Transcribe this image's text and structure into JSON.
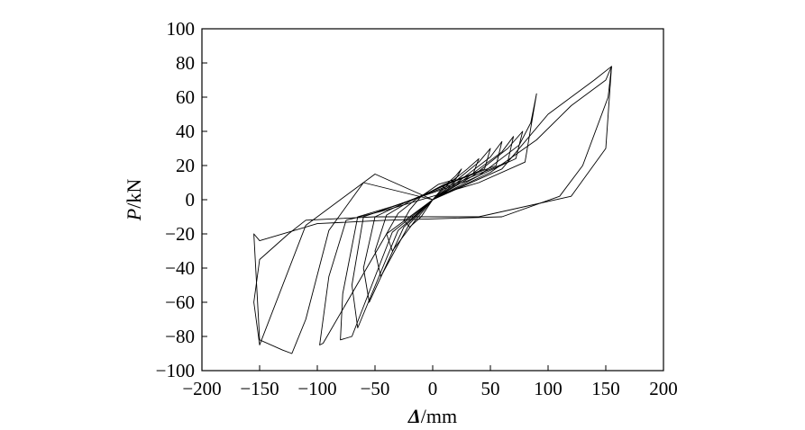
{
  "chart_data": {
    "type": "line",
    "title": "",
    "xlabel": {
      "symbol": "Δ",
      "unit": "/mm"
    },
    "ylabel": {
      "symbol": "P",
      "unit": "/kN"
    },
    "xlim": [
      -200,
      200
    ],
    "ylim": [
      -100,
      100
    ],
    "xticks": [
      -200,
      -150,
      -100,
      -50,
      0,
      50,
      100,
      150,
      200
    ],
    "yticks": [
      -100,
      -80,
      -60,
      -40,
      -20,
      0,
      20,
      40,
      60,
      80,
      100
    ],
    "xtick_labels": [
      "−200",
      "−150",
      "−100",
      "−50",
      "0",
      "50",
      "100",
      "150",
      "200"
    ],
    "ytick_labels": [
      "−100",
      "−80",
      "−60",
      "−40",
      "−20",
      "0",
      "20",
      "40",
      "60",
      "80",
      "100"
    ],
    "grid": false,
    "legend": "none",
    "line_color": "#000000",
    "series": [
      {
        "x": [
          0,
          10,
          20,
          25,
          20,
          5,
          -10,
          -20,
          -25,
          -20,
          -10,
          0
        ],
        "y": [
          0,
          8,
          14,
          18,
          12,
          9,
          2,
          -6,
          -12,
          -16,
          -10,
          0
        ]
      },
      {
        "x": [
          0,
          15,
          30,
          40,
          35,
          10,
          -15,
          -30,
          -40,
          -35,
          -15,
          0
        ],
        "y": [
          0,
          10,
          18,
          24,
          15,
          9,
          0,
          -8,
          -20,
          -30,
          -12,
          0
        ]
      },
      {
        "x": [
          0,
          20,
          40,
          50,
          45,
          15,
          -20,
          -40,
          -50,
          -45,
          -20,
          0
        ],
        "y": [
          0,
          11,
          22,
          30,
          18,
          10,
          -1,
          -9,
          -30,
          -45,
          -14,
          0
        ]
      },
      {
        "x": [
          0,
          25,
          50,
          60,
          55,
          20,
          -25,
          -50,
          -60,
          -55,
          -25,
          0
        ],
        "y": [
          0,
          12,
          25,
          34,
          20,
          11,
          -2,
          -10,
          -40,
          -60,
          -16,
          0
        ]
      },
      {
        "x": [
          0,
          30,
          60,
          70,
          65,
          25,
          -30,
          -60,
          -70,
          -65,
          -30,
          0
        ],
        "y": [
          0,
          13,
          28,
          37,
          22,
          11,
          -3,
          -10,
          -50,
          -75,
          -18,
          0
        ]
      },
      {
        "x": [
          0,
          35,
          65,
          78,
          72,
          30,
          -35,
          -65,
          -78,
          -80,
          -70,
          -35,
          0
        ],
        "y": [
          0,
          14,
          30,
          40,
          24,
          11,
          -4,
          -10,
          -55,
          -82,
          -80,
          -19,
          0
        ]
      },
      {
        "x": [
          0,
          40,
          75,
          85,
          90,
          80,
          40,
          -40,
          -75,
          -90,
          -98,
          -95,
          -40,
          0
        ],
        "y": [
          0,
          14,
          32,
          45,
          62,
          22,
          10,
          -6,
          -12,
          -45,
          -85,
          -84,
          -20,
          0
        ]
      },
      {
        "x": [
          0,
          50,
          90,
          120,
          150,
          155,
          150,
          120,
          40,
          -50,
          -110,
          -125,
          -150,
          -155,
          -150,
          -110,
          -50,
          0
        ],
        "y": [
          0,
          16,
          35,
          55,
          70,
          78,
          30,
          2,
          -10,
          -10,
          -12,
          -20,
          -35,
          -60,
          -85,
          -15,
          15,
          0
        ]
      },
      {
        "x": [
          0,
          60,
          100,
          140,
          155,
          152,
          130,
          110,
          60,
          -40,
          -100,
          -150,
          -155,
          -150,
          -130,
          -122,
          -110,
          -90,
          -60,
          0
        ],
        "y": [
          0,
          18,
          50,
          70,
          78,
          60,
          20,
          2,
          -10,
          -12,
          -14,
          -24,
          -20,
          -82,
          -88,
          -90,
          -70,
          -18,
          10,
          0
        ]
      }
    ]
  }
}
